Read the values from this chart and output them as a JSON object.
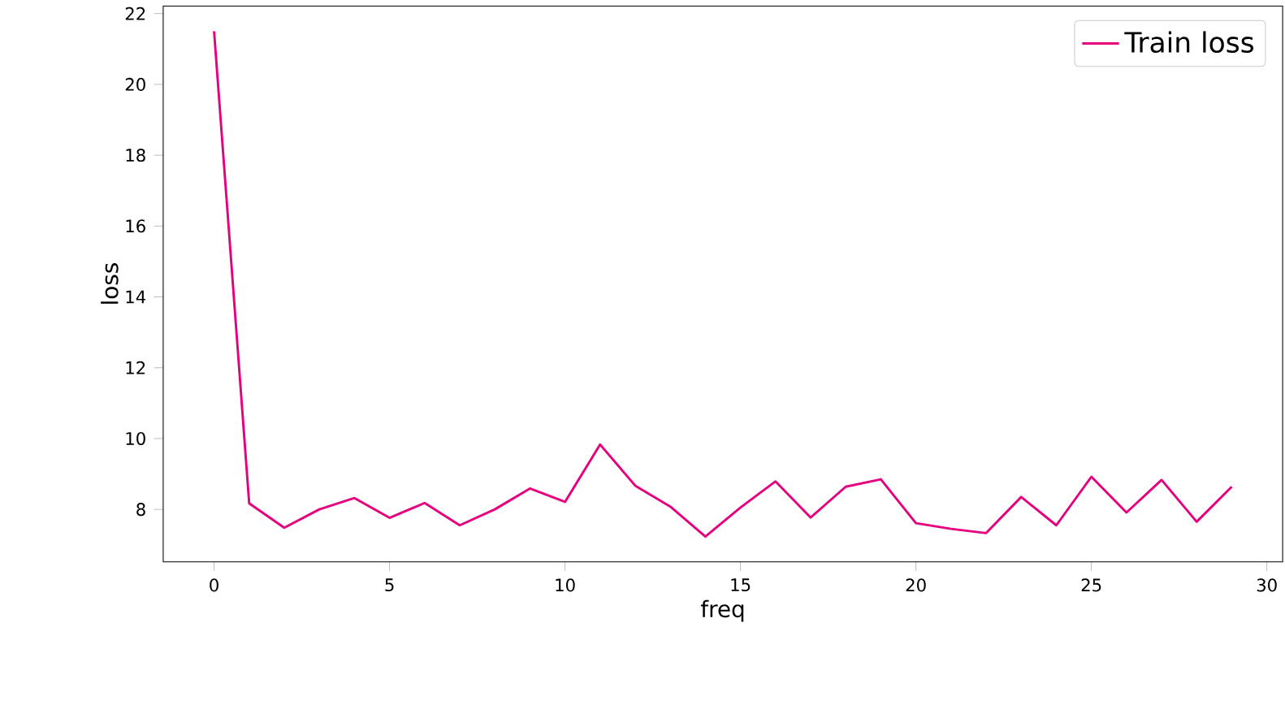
{
  "chart_data": {
    "type": "line",
    "xlabel": "freq",
    "ylabel": "loss",
    "x": [
      0,
      1,
      2,
      3,
      4,
      5,
      6,
      7,
      8,
      9,
      10,
      11,
      12,
      13,
      14,
      15,
      16,
      17,
      18,
      19,
      20,
      21,
      22,
      23,
      24,
      25,
      26,
      27,
      28,
      29
    ],
    "series": [
      {
        "name": "Train loss",
        "color": "#e6007e",
        "values": [
          21.5,
          8.17,
          7.48,
          8.0,
          8.32,
          7.76,
          8.18,
          7.55,
          8.0,
          8.59,
          8.21,
          9.83,
          8.67,
          8.08,
          7.23,
          8.05,
          8.79,
          7.77,
          8.64,
          8.85,
          7.61,
          7.45,
          7.33,
          8.35,
          7.55,
          8.92,
          7.91,
          8.83,
          7.65,
          8.64
        ]
      }
    ],
    "xlim": [
      -1.45,
      30.45
    ],
    "ylim": [
      6.52,
      22.21
    ],
    "xticks": [
      0,
      5,
      10,
      15,
      20,
      25,
      30
    ],
    "yticks": [
      8,
      10,
      12,
      14,
      16,
      18,
      20,
      22
    ],
    "legend": "top right",
    "grid": false,
    "marker": "none",
    "line_style": "solid"
  }
}
